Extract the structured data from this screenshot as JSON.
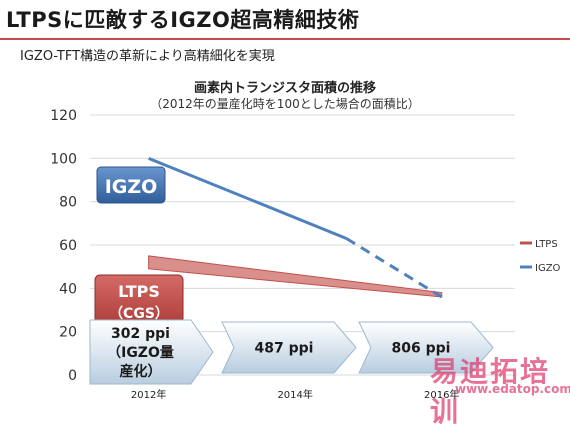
{
  "header": {
    "title": "LTPSに匹敵するIGZO超高精細技術",
    "subtitle": "IGZO-TFT構造の革新により高精細化を実現"
  },
  "chart_data": {
    "type": "line",
    "title": "画素内トランジスタ面積の推移",
    "subtitle": "（2012年の量産化時を100とした場合の面積比）",
    "categories": [
      "2012年",
      "2014年",
      "2016年"
    ],
    "x": [
      2012,
      2014,
      2016
    ],
    "ylim": [
      0,
      120
    ],
    "yticks": [
      "0",
      "20",
      "40",
      "60",
      "80",
      "100",
      "120"
    ],
    "grid": true,
    "legend_position": "right",
    "series": [
      {
        "name": "LTPS",
        "color": "#c0504d",
        "points": [
          [
            2012,
            52
          ],
          [
            2016,
            37
          ]
        ]
      },
      {
        "name": "IGZO",
        "color": "#4f81bd",
        "points": [
          [
            2012,
            100
          ],
          [
            2014.7,
            63
          ],
          [
            2016,
            36
          ]
        ],
        "dashed_from": 2014.7
      }
    ],
    "annotations": {
      "igzo_label": "IGZO",
      "ltps_label_line1": "LTPS",
      "ltps_label_line2": "（CGS）",
      "ppi_arrows": [
        {
          "lines": [
            "302 ppi",
            "（IGZO量",
            "産化）"
          ]
        },
        {
          "lines": [
            "487 ppi"
          ]
        },
        {
          "lines": [
            "806 ppi"
          ]
        }
      ]
    }
  },
  "watermark": {
    "text": "易迪拓培训",
    "url": "www.edatop.com"
  }
}
